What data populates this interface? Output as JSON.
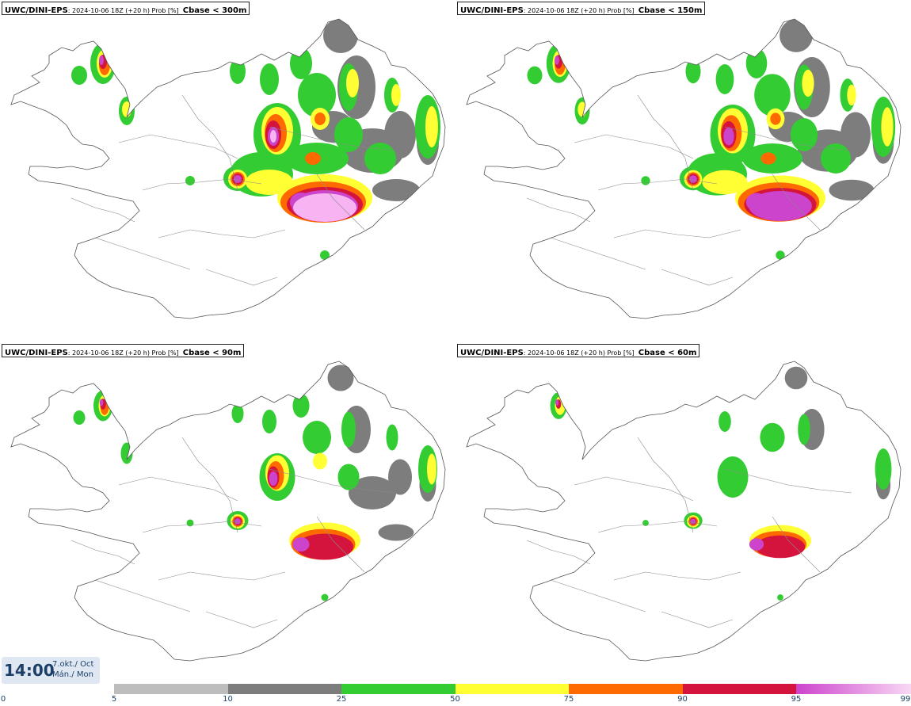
{
  "panels": [
    {
      "model": "UWC/DINI-EPS",
      "info": ": 2024-10-06 18Z (+20 h) Prob [%]",
      "threshold": "Cbase < 300m",
      "intensity": 1.0
    },
    {
      "model": "UWC/DINI-EPS",
      "info": ": 2024-10-06 18Z (+20 h) Prob [%]",
      "threshold": "Cbase < 150m",
      "intensity": 0.8
    },
    {
      "model": "UWC/DINI-EPS",
      "info": ": 2024-10-06 18Z (+20 h) Prob [%]",
      "threshold": "Cbase < 90m",
      "intensity": 0.6
    },
    {
      "model": "UWC/DINI-EPS",
      "info": ": 2024-10-06 18Z (+20 h) Prob [%]",
      "threshold": "Cbase < 60m",
      "intensity": 0.5
    }
  ],
  "time": {
    "clock": "14:00",
    "date_line1": "7.okt./ Oct",
    "date_line2": "Mán./ Mon"
  },
  "legend": {
    "labels": [
      "0",
      "5",
      "10",
      "25",
      "50",
      "75",
      "90",
      "95",
      "99"
    ],
    "colors": [
      "#ffffff",
      "#bdbdbd",
      "#7d7d7d",
      "#33cc33",
      "#ffff33",
      "#ff6a00",
      "#d4143c",
      "#cc44cc",
      "#f7b3f2"
    ]
  }
}
